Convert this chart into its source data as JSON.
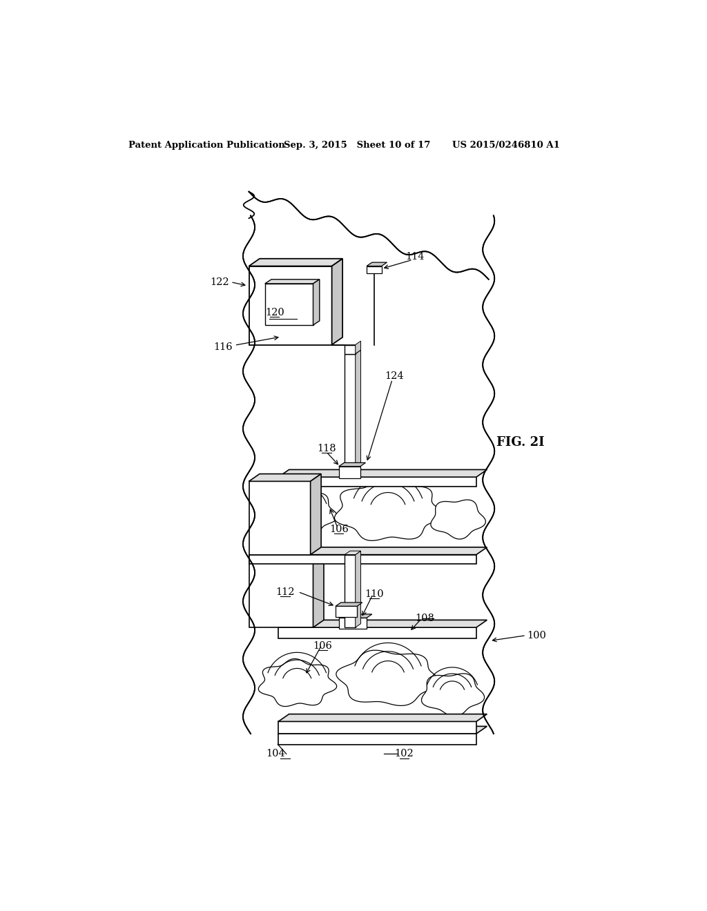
{
  "bg_color": "#ffffff",
  "header_left": "Patent Application Publication",
  "header_mid": "Sep. 3, 2015   Sheet 10 of 17",
  "header_right": "US 2015/0246810 A1",
  "fig_label": "FIG. 2I",
  "lw_main": 1.2,
  "lw_thin": 0.8,
  "gray_light": "#e0e0e0",
  "gray_mid": "#c8c8c8",
  "gray_dark": "#b0b0b0"
}
